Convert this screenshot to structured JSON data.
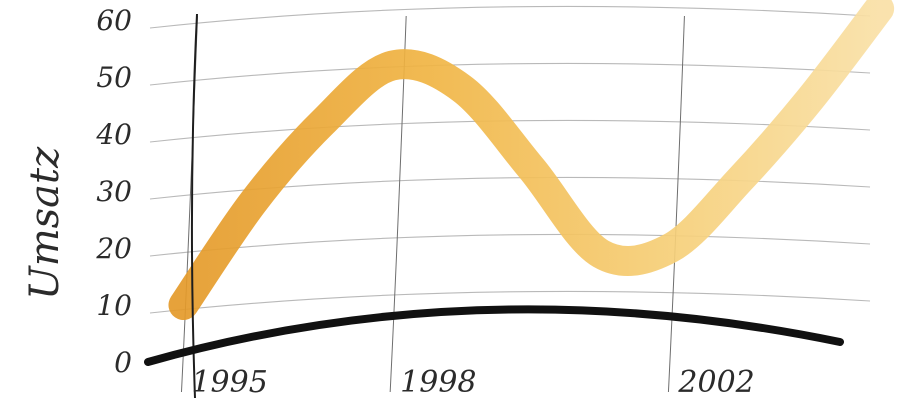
{
  "chart_data": {
    "type": "line",
    "title": "",
    "ylabel": "Umsatz",
    "xlabel": "",
    "ylim": [
      0,
      60
    ],
    "y_ticks": [
      "0",
      "10",
      "20",
      "30",
      "40",
      "50",
      "60"
    ],
    "x_ticks": [
      "1995",
      "1998",
      "2002"
    ],
    "grid": true,
    "series": [
      {
        "color": "#f2b84a",
        "points": [
          {
            "x": 1995,
            "y": 10
          },
          {
            "x": 1996,
            "y": 28
          },
          {
            "x": 1997,
            "y": 42
          },
          {
            "x": 1998,
            "y": 52
          },
          {
            "x": 1999,
            "y": 48
          },
          {
            "x": 2000,
            "y": 34
          },
          {
            "x": 2001,
            "y": 19
          },
          {
            "x": 2002,
            "y": 20
          },
          {
            "x": 2003,
            "y": 32
          },
          {
            "x": 2004,
            "y": 46
          },
          {
            "x": 2005,
            "y": 62
          }
        ]
      }
    ]
  }
}
